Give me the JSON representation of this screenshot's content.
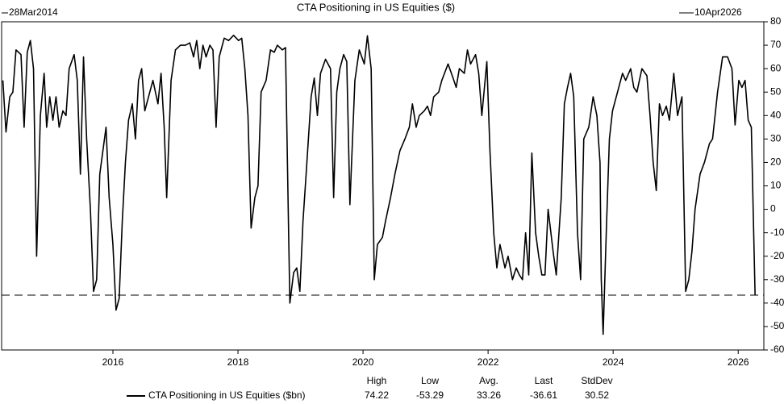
{
  "chart_data": {
    "type": "line",
    "title": "CTA Positioning in US Equities ($)",
    "start_label": "28Mar2014",
    "end_label": "10Apr2026",
    "x": [
      2014.24,
      2014.29,
      2014.35,
      2014.4,
      2014.45,
      2014.53,
      2014.58,
      2014.63,
      2014.68,
      2014.73,
      2014.78,
      2014.84,
      2014.9,
      2014.94,
      2014.99,
      2015.04,
      2015.09,
      2015.14,
      2015.2,
      2015.25,
      2015.3,
      2015.38,
      2015.43,
      2015.48,
      2015.53,
      2015.58,
      2015.64,
      2015.69,
      2015.74,
      2015.79,
      2015.84,
      2015.89,
      2015.94,
      2016.0,
      2016.05,
      2016.1,
      2016.15,
      2016.2,
      2016.25,
      2016.31,
      2016.36,
      2016.41,
      2016.46,
      2016.51,
      2016.59,
      2016.64,
      2016.72,
      2016.77,
      2016.82,
      2016.86,
      2016.93,
      2017.0,
      2017.08,
      2017.16,
      2017.23,
      2017.29,
      2017.34,
      2017.39,
      2017.44,
      2017.49,
      2017.55,
      2017.6,
      2017.65,
      2017.7,
      2017.78,
      2017.85,
      2017.93,
      2018.01,
      2018.06,
      2018.11,
      2018.16,
      2018.21,
      2018.27,
      2018.32,
      2018.37,
      2018.45,
      2018.52,
      2018.58,
      2018.63,
      2018.71,
      2018.76,
      2018.81,
      2018.83,
      2018.89,
      2018.94,
      2018.99,
      2019.04,
      2019.09,
      2019.17,
      2019.22,
      2019.27,
      2019.32,
      2019.4,
      2019.48,
      2019.53,
      2019.58,
      2019.63,
      2019.69,
      2019.74,
      2019.79,
      2019.87,
      2019.94,
      2020.02,
      2020.07,
      2020.13,
      2020.18,
      2020.23,
      2020.31,
      2020.36,
      2020.44,
      2020.51,
      2020.59,
      2020.67,
      2020.74,
      2020.79,
      2020.85,
      2020.9,
      2020.98,
      2021.03,
      2021.08,
      2021.13,
      2021.21,
      2021.26,
      2021.36,
      2021.44,
      2021.49,
      2021.54,
      2021.62,
      2021.67,
      2021.72,
      2021.8,
      2021.85,
      2021.9,
      2021.98,
      2022.03,
      2022.09,
      2022.14,
      2022.19,
      2022.27,
      2022.32,
      2022.39,
      2022.45,
      2022.5,
      2022.55,
      2022.6,
      2022.65,
      2022.7,
      2022.76,
      2022.81,
      2022.86,
      2022.91,
      2022.96,
      2023.04,
      2023.09,
      2023.17,
      2023.22,
      2023.27,
      2023.32,
      2023.37,
      2023.43,
      2023.48,
      2023.53,
      2023.61,
      2023.68,
      2023.74,
      2023.79,
      2023.81,
      2023.84,
      2023.89,
      2023.94,
      2023.99,
      2024.07,
      2024.15,
      2024.2,
      2024.28,
      2024.33,
      2024.38,
      2024.46,
      2024.54,
      2024.59,
      2024.64,
      2024.69,
      2024.74,
      2024.79,
      2024.85,
      2024.9,
      2024.97,
      2025.03,
      2025.1,
      2025.16,
      2025.21,
      2025.26,
      2025.31,
      2025.39,
      2025.46,
      2025.54,
      2025.59,
      2025.67,
      2025.75,
      2025.83,
      2025.9,
      2025.95,
      2026.01,
      2026.06,
      2026.11,
      2026.16,
      2026.21,
      2026.27
    ],
    "series": [
      {
        "name": "CTA Positioning in US Equities ($bn)",
        "color": "#000000",
        "values": [
          55,
          33,
          48,
          50,
          68,
          66,
          35,
          67,
          72,
          60,
          -20,
          40,
          58,
          35,
          48,
          38,
          48,
          35,
          42,
          40,
          60,
          66,
          55,
          15,
          65,
          30,
          0,
          -35,
          -30,
          15,
          25,
          35,
          5,
          -15,
          -43,
          -38,
          -5,
          20,
          38,
          45,
          30,
          55,
          60,
          42,
          50,
          55,
          45,
          58,
          35,
          5,
          55,
          68,
          70,
          70,
          71,
          65,
          72,
          60,
          70,
          65,
          70,
          68,
          35,
          65,
          73,
          72,
          74.22,
          72,
          73,
          60,
          40,
          -8,
          5,
          10,
          50,
          55,
          68,
          67,
          70,
          68,
          69,
          -10,
          -40,
          -27,
          -25,
          -35,
          -5,
          15,
          48,
          56,
          40,
          58,
          64,
          60,
          5,
          50,
          60,
          66,
          63,
          2,
          55,
          68,
          62,
          74,
          60,
          -30,
          -15,
          -12,
          -5,
          5,
          15,
          25,
          30,
          35,
          45,
          35,
          40,
          42,
          44,
          40,
          48,
          50,
          55,
          62,
          56,
          52,
          60,
          58,
          68,
          62,
          66,
          58,
          40,
          63,
          25,
          -10,
          -25,
          -15,
          -25,
          -20,
          -30,
          -25,
          -28,
          -30,
          -10,
          -28,
          24,
          -10,
          -20,
          -28,
          -28,
          0,
          -18,
          -28,
          5,
          45,
          52,
          58,
          48,
          -10,
          -30,
          30,
          35,
          48,
          40,
          20,
          -30,
          -53.29,
          -10,
          30,
          42,
          50,
          58,
          55,
          60,
          52,
          50,
          60,
          57,
          40,
          20,
          8,
          45,
          40,
          44,
          38,
          58,
          40,
          48,
          -35,
          -30,
          -18,
          0,
          15,
          20,
          28,
          30,
          50,
          65,
          65,
          60,
          36,
          55,
          52,
          55,
          38,
          35,
          -36.61
        ]
      }
    ],
    "xlim": [
      2014.22,
      2026.41
    ],
    "xticks": [
      2016,
      2018,
      2020,
      2022,
      2024,
      2026
    ],
    "ylim": [
      -60,
      80
    ],
    "yticks": [
      -60,
      -50,
      -40,
      -30,
      -20,
      -10,
      0,
      10,
      20,
      30,
      40,
      50,
      60,
      70,
      80
    ],
    "stats": {
      "labels": [
        "High",
        "Low",
        "Avg.",
        "Last",
        "StdDev"
      ],
      "values": [
        74.22,
        -53.29,
        33.26,
        -36.61,
        30.52
      ]
    }
  }
}
